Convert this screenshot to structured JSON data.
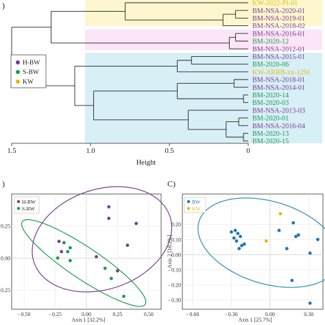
{
  "colors": {
    "h_bw": "#7b3c8e",
    "s_bw": "#1a9b50",
    "kw": "#e8b800",
    "bw": "#1f77b4",
    "bg_kw": "#fdf6cf",
    "bg_purple": "#fbe5f6",
    "bg_blue": "#d8eff7"
  },
  "chart_data": [
    {
      "type": "dendrogram",
      "panel_label": ")",
      "xlabel": "Height",
      "x_ticks": [
        "1.5",
        "1.0",
        "0.5",
        "0"
      ],
      "xlim": [
        1.5,
        0
      ],
      "legend": {
        "placement": "left",
        "entries": [
          {
            "label": "H-BW",
            "color": "#7b3c8e"
          },
          {
            "label": "S-BW",
            "color": "#1a9b50"
          },
          {
            "label": "KW",
            "color": "#e8b800"
          }
        ]
      },
      "leaves": [
        {
          "label": "KW-2022-PI-01",
          "group": "KW"
        },
        {
          "label": "BM-NSA-2020-01",
          "group": "H-BW"
        },
        {
          "label": "BM-NSA-2019-01",
          "group": "H-BW"
        },
        {
          "label": "BM-NSA-2018-02",
          "group": "H-BW"
        },
        {
          "label": "BM-NSA-2016-01",
          "group": "H-BW"
        },
        {
          "label": "BM-2020-12",
          "group": "S-BW"
        },
        {
          "label": "BM-NSA-2012-01",
          "group": "H-BW"
        },
        {
          "label": "BM-NSA-2015-01",
          "group": "H-BW"
        },
        {
          "label": "BM-2020-06",
          "group": "S-BW"
        },
        {
          "label": "KW-ARRB-xx-1291",
          "group": "KW"
        },
        {
          "label": "BM-NSA-2018-01",
          "group": "H-BW"
        },
        {
          "label": "BM-NSA-2014-01",
          "group": "H-BW"
        },
        {
          "label": "BM-2020-14",
          "group": "S-BW"
        },
        {
          "label": "BM-2020-03",
          "group": "S-BW"
        },
        {
          "label": "BM-NSA-2013-03",
          "group": "H-BW"
        },
        {
          "label": "BM-2020-01",
          "group": "S-BW"
        },
        {
          "label": "BM-NSA-2016-04",
          "group": "H-BW"
        },
        {
          "label": "BM-2020-13",
          "group": "S-BW"
        },
        {
          "label": "BM-2020-15",
          "group": "S-BW"
        }
      ]
    },
    {
      "type": "scatter",
      "panel_label": ")",
      "xlabel": "Axis 1 [32.2%]",
      "ylabel": "",
      "xlim": [
        -0.6,
        0.6
      ],
      "ylim": [
        -0.4,
        0.5
      ],
      "x_ticks": [
        -0.5,
        -0.25,
        0.0,
        0.25,
        0.5
      ],
      "x_tick_labels": [
        "- 0.50",
        "- 0.25",
        "0.00",
        "0.25",
        "0.50"
      ],
      "y_ticks": [
        0.25,
        0.0,
        -0.25
      ],
      "y_tick_labels": [
        "0.25",
        "0.00",
        "- 0.25"
      ],
      "legend": {
        "placement": "top-left",
        "entries": [
          "H-BW",
          "S-BW"
        ]
      },
      "series": [
        {
          "name": "H-BW",
          "color": "#7b3c8e",
          "x": [
            0.18,
            0.18,
            -0.22,
            -0.2,
            0.08,
            0.33,
            0.4,
            0.25
          ],
          "y": [
            0.4,
            0.31,
            0.13,
            0.05,
            0.01,
            0.1,
            0.27,
            -0.1
          ]
        },
        {
          "name": "S-BW",
          "color": "#1a9b50",
          "x": [
            -0.18,
            -0.13,
            -0.15,
            -0.23,
            -0.13,
            0.15,
            0.2,
            0.3
          ],
          "y": [
            0.12,
            0.08,
            0.05,
            0.0,
            -0.02,
            -0.08,
            -0.16,
            -0.3
          ]
        }
      ],
      "ellipses": [
        {
          "series": "H-BW",
          "color": "#7b3c8e"
        },
        {
          "series": "S-BW",
          "color": "#1a9b50"
        }
      ],
      "grid": true
    },
    {
      "type": "scatter",
      "panel_label": "C)",
      "xlabel": "Axis 1 [25.7%]",
      "ylabel": "Axis 2 [18.2%]",
      "xlim": [
        -0.68,
        0.41
      ],
      "ylim": [
        -0.36,
        0.4
      ],
      "x_ticks": [
        -0.6,
        -0.3,
        0.0,
        0.3
      ],
      "x_tick_labels": [
        "- 0.60",
        "- 0.30",
        "0.00",
        "0.30"
      ],
      "y_ticks": [
        0.2,
        0.1,
        0.0,
        -0.1,
        -0.2,
        -0.3
      ],
      "y_tick_labels": [
        "0.20",
        "0.10",
        "0.00",
        "- 0.10",
        "- 0.20",
        "- 0.30"
      ],
      "legend": {
        "placement": "top-left",
        "entries": [
          "BW",
          "KW"
        ]
      },
      "series": [
        {
          "name": "BW",
          "color": "#1f77b4",
          "x": [
            -0.3,
            -0.27,
            -0.25,
            -0.23,
            -0.28,
            -0.26,
            -0.2,
            -0.22,
            -0.24,
            0.07,
            0.18,
            0.2,
            0.22,
            0.13,
            0.37,
            0.31,
            0.17,
            0.31
          ],
          "y": [
            0.15,
            0.16,
            0.14,
            0.12,
            0.11,
            0.09,
            0.07,
            0.06,
            0.04,
            0.16,
            0.21,
            0.12,
            0.13,
            0.04,
            0.1,
            0.01,
            -0.17,
            -0.32
          ]
        },
        {
          "name": "KW",
          "color": "#e8b800",
          "x": [
            0.08,
            -0.03
          ],
          "y": [
            0.27,
            0.09
          ]
        }
      ],
      "ellipses": [
        {
          "series": "all",
          "color": "#2b8cb5"
        }
      ],
      "grid": true
    }
  ]
}
